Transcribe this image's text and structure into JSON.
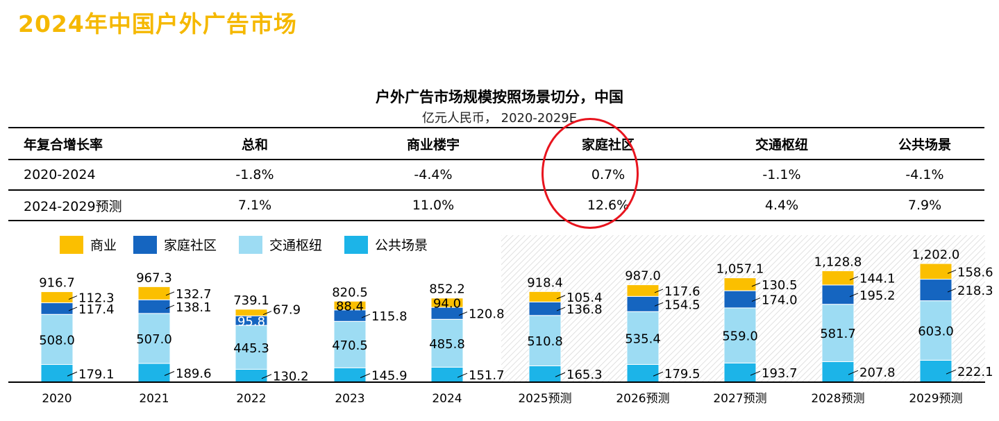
{
  "page_title": "2024年中国户外广告市场",
  "chart_title": "户外广告市场规模按照场景切分，中国",
  "chart_subtitle": "亿元人民币， 2020-2029E",
  "cagr_table": {
    "headers": [
      "年复合增长率",
      "总和",
      "商业楼宇",
      "家庭社区",
      "交通枢纽",
      "公共场景"
    ],
    "rows": [
      [
        "2020-2024",
        "-1.8%",
        "-4.4%",
        "0.7%",
        "-1.1%",
        "-4.1%"
      ],
      [
        "2024-2029预测",
        "7.1%",
        "11.0%",
        "12.6%",
        "4.4%",
        "7.9%"
      ]
    ]
  },
  "colors": {
    "title": "#f5b800",
    "commercial": "#fbbf00",
    "community": "#1565c0",
    "transport": "#9ddcf3",
    "public": "#1cb4e8",
    "highlight": "#e8141e"
  },
  "chart_data": {
    "type": "bar",
    "stacked": true,
    "categories": [
      "2020",
      "2021",
      "2022",
      "2023",
      "2024",
      "2025预测",
      "2026预测",
      "2027预测",
      "2028预测",
      "2029预测"
    ],
    "forecast_start_index": 5,
    "series": [
      {
        "name": "公共场景",
        "key": "public",
        "values": [
          179.1,
          189.6,
          130.2,
          145.9,
          151.7,
          165.3,
          179.5,
          193.7,
          207.8,
          222.1
        ]
      },
      {
        "name": "交通枢纽",
        "key": "transport",
        "values": [
          508.0,
          507.0,
          445.3,
          470.5,
          485.8,
          510.8,
          535.4,
          559.0,
          581.7,
          603.0
        ]
      },
      {
        "name": "家庭社区",
        "key": "community",
        "values": [
          117.4,
          138.1,
          95.8,
          115.8,
          120.8,
          136.8,
          154.5,
          174.0,
          195.2,
          218.3
        ]
      },
      {
        "name": "商业",
        "key": "commercial",
        "values": [
          112.3,
          132.7,
          67.9,
          88.4,
          94.0,
          105.4,
          117.6,
          130.5,
          144.1,
          158.6
        ]
      }
    ],
    "totals": [
      916.7,
      967.3,
      739.1,
      820.5,
      852.2,
      918.4,
      987.0,
      1057.1,
      1128.8,
      1202.0
    ],
    "labels": {
      "public": [
        "179.1",
        "189.6",
        "130.2",
        "145.9",
        "151.7",
        "165.3",
        "179.5",
        "193.7",
        "207.8",
        "222.1"
      ],
      "transport": [
        "508.0",
        "507.0",
        "445.3",
        "470.5",
        "485.8",
        "510.8",
        "535.4",
        "559.0",
        "581.7",
        "603.0"
      ],
      "community": [
        "117.4",
        "138.1",
        "95.8",
        "115.8",
        "120.8",
        "136.8",
        "154.5",
        "174.0",
        "195.2",
        "218.3"
      ],
      "commercial": [
        "112.3",
        "132.7",
        "67.9",
        "88.4",
        "94.0",
        "105.4",
        "117.6",
        "130.5",
        "144.1",
        "158.6"
      ],
      "totals": [
        "916.7",
        "967.3",
        "739.1",
        "820.5",
        "852.2",
        "918.4",
        "987.0",
        "1,057.1",
        "1,128.8",
        "1,202.0"
      ]
    },
    "legend": [
      "商业",
      "家庭社区",
      "交通枢纽",
      "公共场景"
    ],
    "legend_keys": [
      "commercial",
      "community",
      "transport",
      "public"
    ],
    "ylim": [
      0,
      1202.0
    ]
  }
}
